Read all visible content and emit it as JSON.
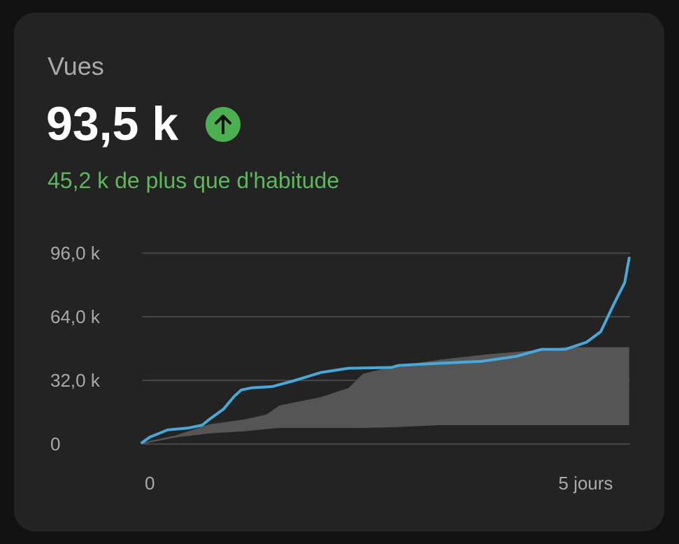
{
  "title": "Vues",
  "total": "93,5 k",
  "subtitle": "45,2 k de plus que d'habitude",
  "chart_data": {
    "type": "line",
    "xlim": [
      0,
      5.5
    ],
    "xticks": [
      0,
      {
        "value": 5,
        "label": "5 jours"
      }
    ],
    "ylim": [
      0,
      96
    ],
    "yticks": [
      0,
      {
        "value": 32,
        "label": "32,0 k"
      },
      {
        "value": 64,
        "label": "64,0 k"
      },
      {
        "value": 96,
        "label": "96,0 k"
      }
    ],
    "grid": true,
    "band": {
      "color": "#555555",
      "x": [
        0,
        0.37,
        0.76,
        1.16,
        1.4,
        1.55,
        2.02,
        2.33,
        2.49,
        2.81,
        3.36,
        3.91,
        4.38,
        4.77,
        5.49
      ],
      "lower": [
        0,
        3.2,
        5.3,
        6.4,
        7.5,
        8.1,
        8.1,
        8.1,
        8.1,
        8.4,
        9.5,
        9.5,
        9.5,
        9.5,
        9.5
      ],
      "upper": [
        0.7,
        4.2,
        9.9,
        12.4,
        14.8,
        19.4,
        23.6,
        28.2,
        35.3,
        38.8,
        42.4,
        45.2,
        46.9,
        48.7,
        48.7
      ]
    },
    "line": {
      "color": "#4aa8d8",
      "x": [
        0,
        0.09,
        0.29,
        0.53,
        0.68,
        0.76,
        0.92,
        1.04,
        1.12,
        1.23,
        1.47,
        1.71,
        2.02,
        2.33,
        2.81,
        2.89,
        3.36,
        3.83,
        4.22,
        4.5,
        4.77,
        5.01,
        5.17,
        5.32,
        5.44,
        5.49
      ],
      "values": [
        0.7,
        3.5,
        7.1,
        8.1,
        9.5,
        12.4,
        17.6,
        24,
        27.2,
        28.2,
        28.9,
        31.8,
        36,
        38.1,
        38.5,
        39.5,
        40.6,
        41.6,
        44.1,
        47.6,
        47.6,
        51.2,
        56.5,
        70.6,
        81.2,
        93.5
      ]
    }
  }
}
